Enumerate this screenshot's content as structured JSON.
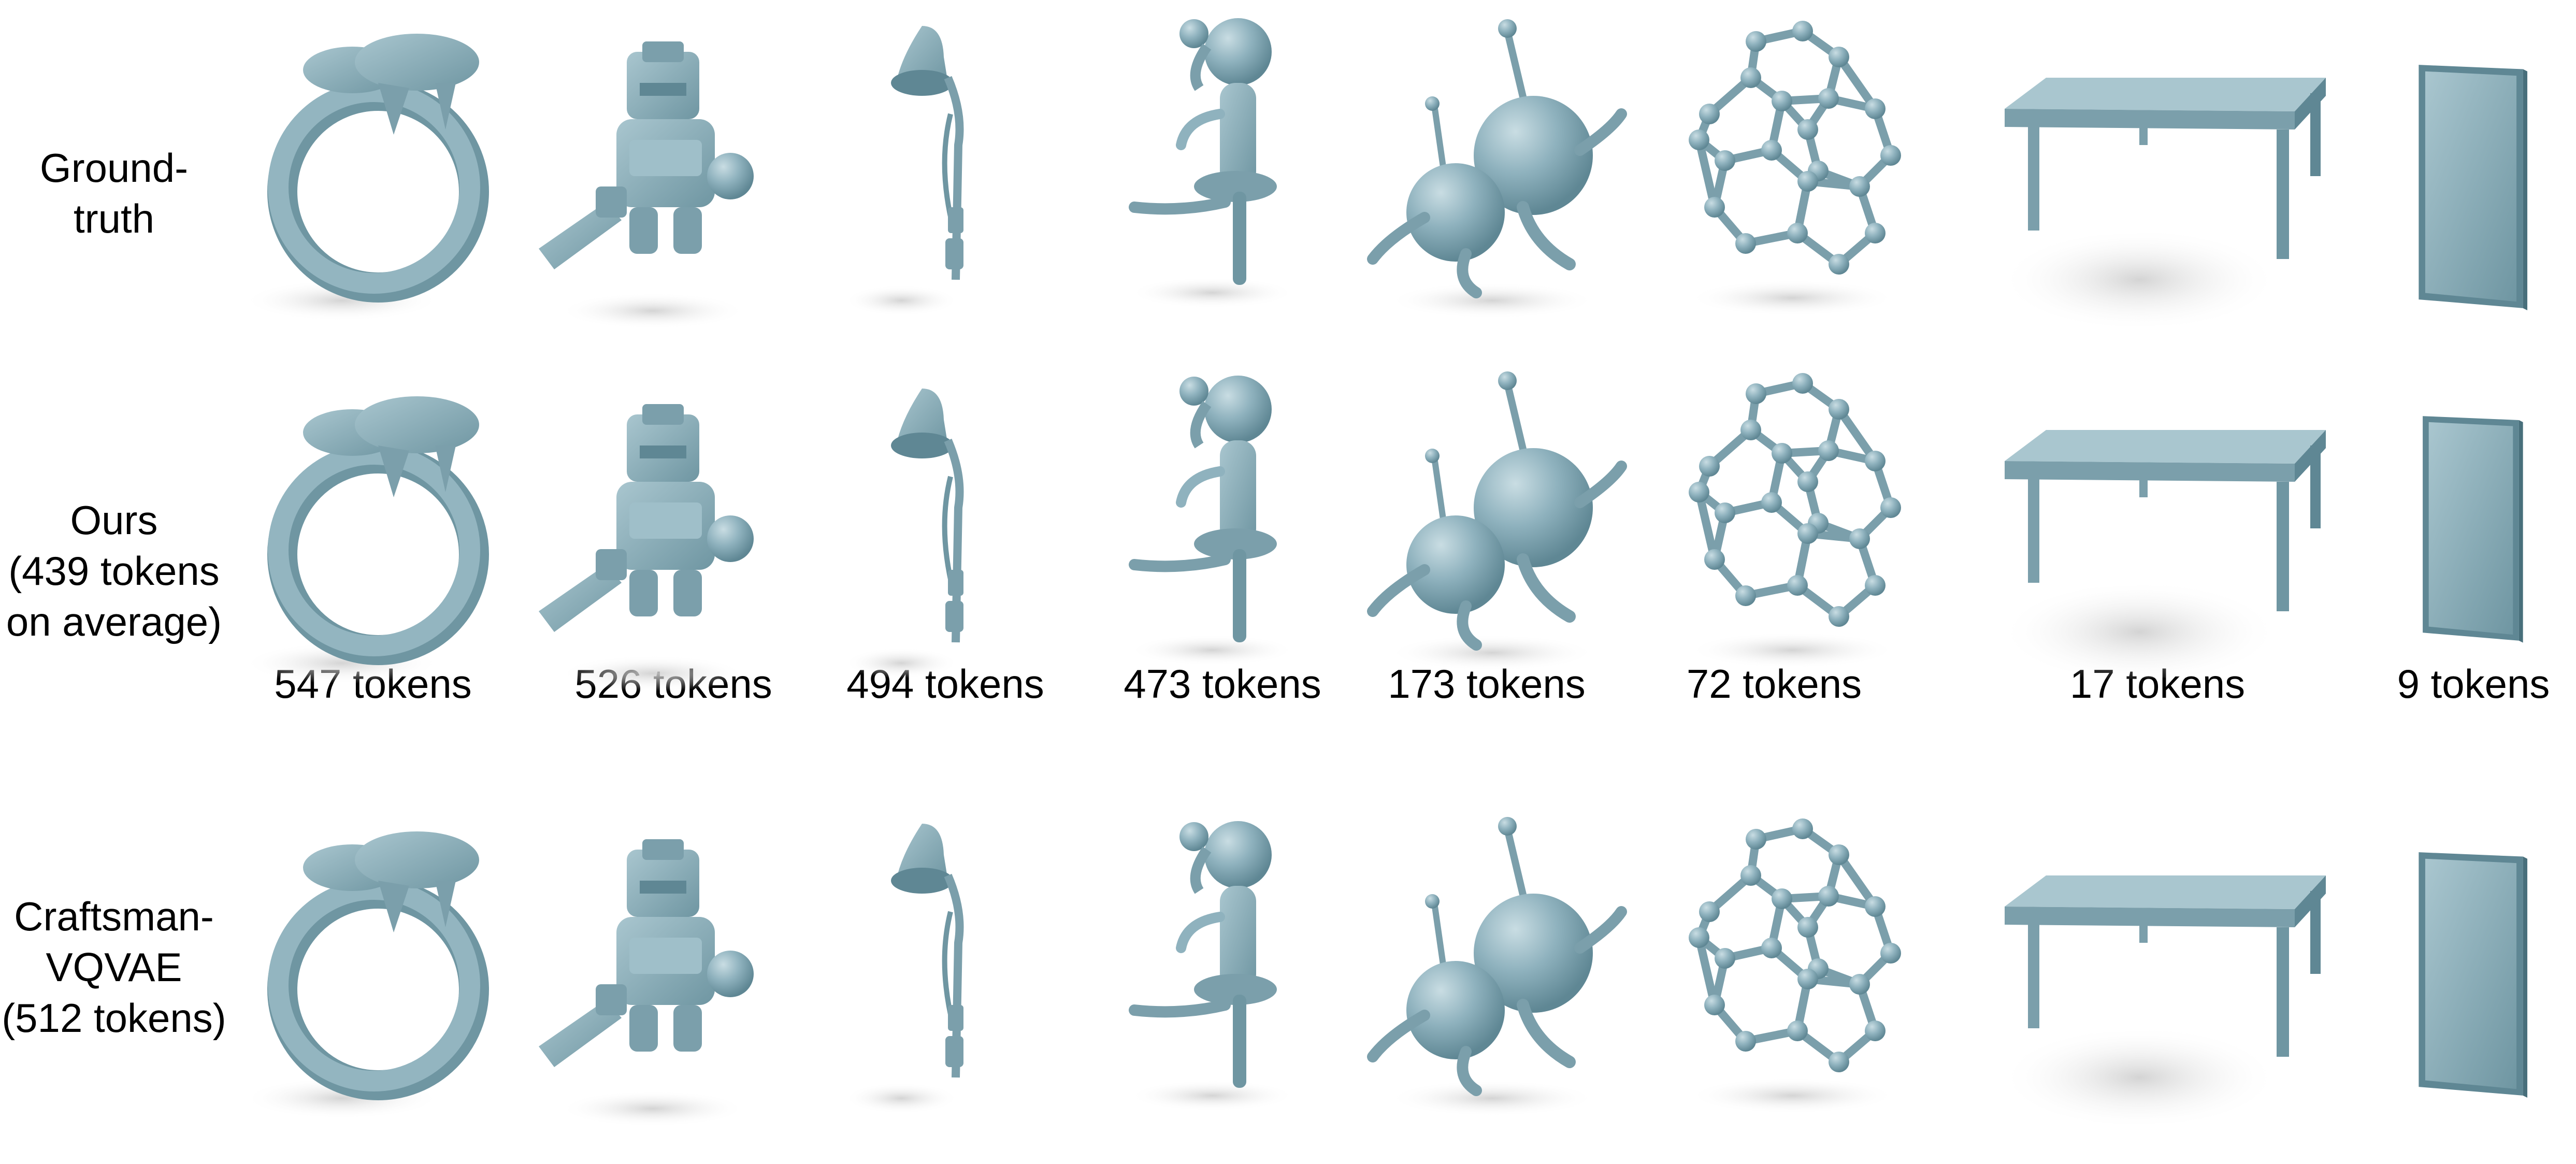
{
  "rows": [
    {
      "label_lines": [
        "Ground-",
        "truth"
      ]
    },
    {
      "label_lines": [
        "Ours",
        "(439 tokens",
        "on average)"
      ]
    },
    {
      "label_lines": [
        "Craftsman-",
        "VQVAE",
        "(512 tokens)"
      ]
    }
  ],
  "token_labels": [
    "547 tokens",
    "526 tokens",
    "494 tokens",
    "473 tokens",
    "173 tokens",
    "72 tokens",
    "17 tokens",
    "9 tokens"
  ],
  "objects": [
    "ring",
    "robot-knight",
    "desk-lamp",
    "girl-figure",
    "alien-pair",
    "molecule-cage",
    "table",
    "door-panel"
  ],
  "colors": {
    "mesh": "#8fb2be",
    "mesh_dark": "#5f8794",
    "mesh_light": "#b9d1d8",
    "shadow": "#d9d9d9"
  }
}
